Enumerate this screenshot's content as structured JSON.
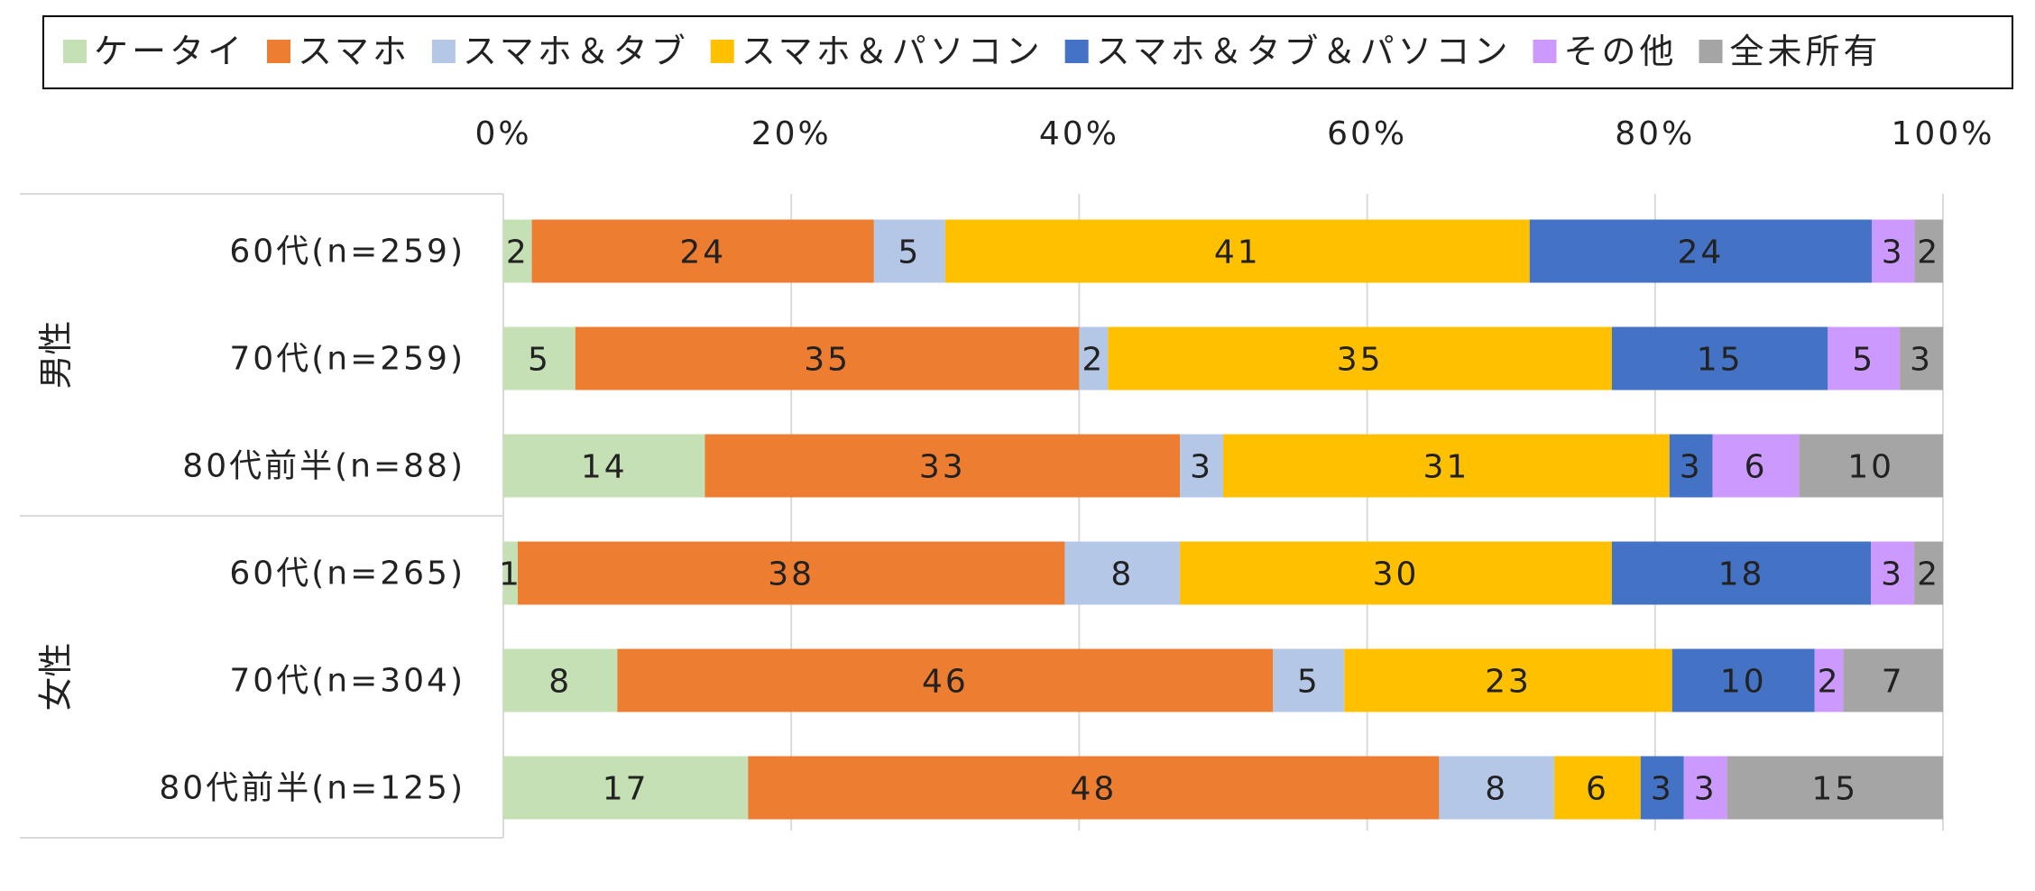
{
  "chart_data": {
    "type": "bar",
    "orientation": "horizontal",
    "stacked": "percent",
    "title": "",
    "xlabel": "",
    "ylabel": "",
    "xlim": [
      0,
      100
    ],
    "x_ticks": [
      "0%",
      "20%",
      "40%",
      "60%",
      "80%",
      "100%"
    ],
    "grid": true,
    "legend_position": "top",
    "groups": [
      {
        "label": "男性",
        "rows": [
          0,
          1,
          2
        ]
      },
      {
        "label": "女性",
        "rows": [
          3,
          4,
          5
        ]
      }
    ],
    "categories": [
      "60代(n=259)",
      "70代(n=259)",
      "80代前半(n=88)",
      "60代(n=265)",
      "70代(n=304)",
      "80代前半(n=125)"
    ],
    "series": [
      {
        "name": "ケータイ",
        "color": "#c5e0b4",
        "values": [
          2,
          5,
          14,
          1,
          8,
          17
        ]
      },
      {
        "name": "スマホ",
        "color": "#ed7d31",
        "values": [
          24,
          35,
          33,
          38,
          46,
          48
        ]
      },
      {
        "name": "スマホ＆タブ",
        "color": "#b4c7e7",
        "values": [
          5,
          2,
          3,
          8,
          5,
          8
        ]
      },
      {
        "name": "スマホ＆パソコン",
        "color": "#ffc000",
        "values": [
          41,
          35,
          31,
          30,
          23,
          6
        ]
      },
      {
        "name": "スマホ＆タブ＆パソコン",
        "color": "#4472c4",
        "values": [
          24,
          15,
          3,
          18,
          10,
          3
        ]
      },
      {
        "name": "その他",
        "color": "#cc99ff",
        "values": [
          3,
          5,
          6,
          3,
          2,
          3
        ]
      },
      {
        "name": "全未所有",
        "color": "#a5a5a5",
        "values": [
          2,
          3,
          10,
          2,
          7,
          15
        ]
      }
    ]
  }
}
